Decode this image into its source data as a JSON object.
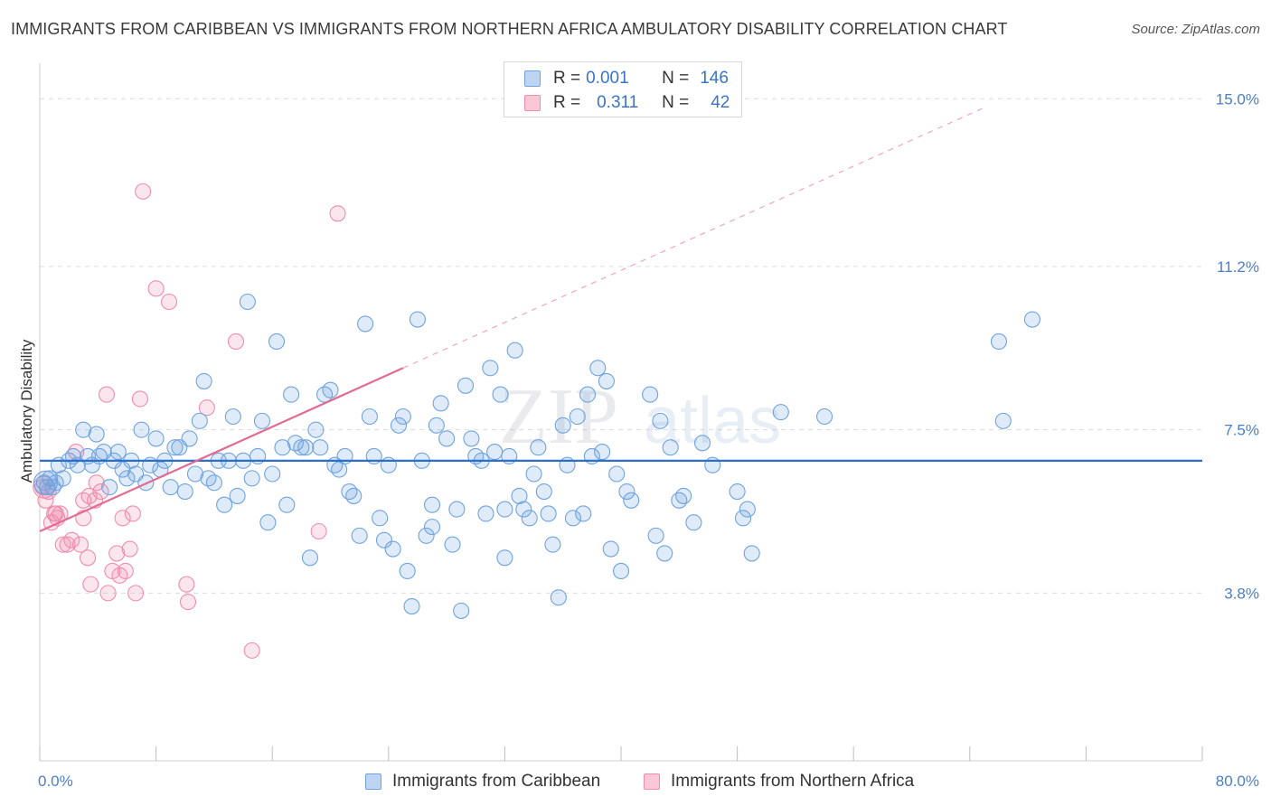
{
  "header": {
    "title": "IMMIGRANTS FROM CARIBBEAN VS IMMIGRANTS FROM NORTHERN AFRICA AMBULATORY DISABILITY CORRELATION CHART",
    "source": "Source: ZipAtlas.com"
  },
  "legend": {
    "rows": [
      {
        "r_label": "R =",
        "r_value": "0.001",
        "n_label": "N =",
        "n_value": "146"
      },
      {
        "r_label": "R =",
        "r_value": "0.311",
        "n_label": "N =",
        "n_value": "42"
      }
    ]
  },
  "watermark": {
    "part1": "ZIP",
    "part2": "atlas"
  },
  "chart_data": {
    "type": "scatter",
    "title": "IMMIGRANTS FROM CARIBBEAN VS IMMIGRANTS FROM NORTHERN AFRICA AMBULATORY DISABILITY CORRELATION CHART",
    "xlabel": "",
    "ylabel": "Ambulatory Disability",
    "xlim": [
      0,
      80
    ],
    "ylim": [
      0,
      15.6
    ],
    "x_tick_labels": [
      "0.0%",
      "80.0%"
    ],
    "y_ticks": [
      3.8,
      7.5,
      11.2,
      15.0
    ],
    "y_tick_labels": [
      "3.8%",
      "7.5%",
      "11.2%",
      "15.0%"
    ],
    "grid": true,
    "legend_position": "top-center",
    "colors": {
      "caribbean": "#6fa3e0",
      "northern_africa": "#f08cad",
      "caribbean_line": "#2a6fc9",
      "northern_africa_line": "#e26a93"
    },
    "series": [
      {
        "name": "Immigrants from Caribbean",
        "r": 0.001,
        "n": 146,
        "trend": {
          "x": [
            0,
            80
          ],
          "y": [
            6.8,
            6.8
          ]
        },
        "points": [
          [
            0.3,
            6.3
          ],
          [
            0.5,
            6.2
          ],
          [
            0.7,
            6.4
          ],
          [
            0.9,
            6.2
          ],
          [
            1.1,
            6.3
          ],
          [
            1.3,
            6.7
          ],
          [
            1.6,
            6.4
          ],
          [
            2.0,
            6.8
          ],
          [
            2.3,
            6.9
          ],
          [
            2.6,
            6.7
          ],
          [
            3.0,
            7.5
          ],
          [
            3.3,
            6.9
          ],
          [
            3.6,
            6.7
          ],
          [
            3.9,
            7.4
          ],
          [
            4.1,
            6.9
          ],
          [
            4.4,
            7.0
          ],
          [
            4.8,
            6.2
          ],
          [
            5.1,
            6.8
          ],
          [
            5.4,
            7.0
          ],
          [
            5.7,
            6.6
          ],
          [
            6.0,
            6.4
          ],
          [
            6.3,
            6.8
          ],
          [
            6.6,
            6.5
          ],
          [
            7.0,
            7.5
          ],
          [
            7.3,
            6.3
          ],
          [
            7.6,
            6.7
          ],
          [
            8.0,
            7.3
          ],
          [
            8.3,
            6.6
          ],
          [
            8.6,
            6.8
          ],
          [
            9.0,
            6.2
          ],
          [
            9.3,
            7.1
          ],
          [
            9.6,
            7.1
          ],
          [
            10.0,
            6.1
          ],
          [
            10.3,
            7.3
          ],
          [
            10.7,
            6.5
          ],
          [
            11.0,
            7.7
          ],
          [
            11.3,
            8.6
          ],
          [
            11.6,
            6.4
          ],
          [
            12.0,
            6.3
          ],
          [
            12.3,
            6.8
          ],
          [
            12.7,
            5.8
          ],
          [
            13.0,
            6.8
          ],
          [
            13.3,
            7.8
          ],
          [
            13.6,
            6.0
          ],
          [
            14.0,
            6.8
          ],
          [
            14.3,
            10.4
          ],
          [
            14.6,
            6.4
          ],
          [
            15.0,
            6.9
          ],
          [
            15.3,
            7.7
          ],
          [
            15.7,
            5.4
          ],
          [
            16.0,
            6.5
          ],
          [
            16.3,
            9.5
          ],
          [
            16.7,
            7.1
          ],
          [
            17.0,
            5.8
          ],
          [
            17.3,
            8.3
          ],
          [
            17.6,
            7.2
          ],
          [
            18.0,
            7.1
          ],
          [
            18.3,
            7.1
          ],
          [
            18.6,
            4.6
          ],
          [
            19.0,
            7.5
          ],
          [
            19.3,
            7.1
          ],
          [
            19.6,
            8.3
          ],
          [
            20.0,
            8.4
          ],
          [
            20.3,
            6.7
          ],
          [
            20.6,
            6.6
          ],
          [
            21.0,
            6.9
          ],
          [
            21.3,
            6.1
          ],
          [
            21.6,
            6.0
          ],
          [
            22.0,
            5.1
          ],
          [
            22.4,
            9.9
          ],
          [
            22.7,
            7.8
          ],
          [
            23.0,
            6.9
          ],
          [
            23.4,
            5.5
          ],
          [
            23.7,
            5.0
          ],
          [
            24.0,
            6.7
          ],
          [
            24.3,
            4.8
          ],
          [
            24.7,
            7.6
          ],
          [
            25.0,
            7.8
          ],
          [
            25.3,
            4.3
          ],
          [
            25.6,
            3.5
          ],
          [
            26.0,
            10.0
          ],
          [
            26.3,
            6.8
          ],
          [
            26.6,
            5.1
          ],
          [
            27.0,
            5.8
          ],
          [
            27.3,
            7.6
          ],
          [
            27.6,
            8.1
          ],
          [
            28.0,
            7.3
          ],
          [
            28.4,
            4.9
          ],
          [
            28.7,
            5.7
          ],
          [
            29.0,
            3.4
          ],
          [
            29.3,
            8.5
          ],
          [
            29.7,
            7.3
          ],
          [
            30.0,
            6.9
          ],
          [
            30.4,
            6.8
          ],
          [
            30.7,
            5.6
          ],
          [
            31.0,
            8.9
          ],
          [
            31.3,
            7.0
          ],
          [
            31.7,
            8.3
          ],
          [
            32.0,
            4.6
          ],
          [
            32.3,
            6.9
          ],
          [
            32.7,
            9.3
          ],
          [
            33.0,
            6.0
          ],
          [
            33.3,
            5.7
          ],
          [
            33.7,
            5.5
          ],
          [
            34.0,
            6.5
          ],
          [
            34.3,
            7.1
          ],
          [
            34.7,
            6.1
          ],
          [
            35.0,
            5.6
          ],
          [
            35.3,
            4.9
          ],
          [
            35.7,
            3.7
          ],
          [
            36.0,
            7.6
          ],
          [
            36.3,
            6.7
          ],
          [
            36.7,
            5.5
          ],
          [
            37.0,
            7.8
          ],
          [
            37.4,
            5.6
          ],
          [
            37.7,
            8.3
          ],
          [
            38.0,
            6.9
          ],
          [
            38.4,
            8.9
          ],
          [
            38.7,
            7.0
          ],
          [
            39.0,
            8.6
          ],
          [
            39.3,
            4.8
          ],
          [
            39.7,
            6.5
          ],
          [
            40.0,
            4.3
          ],
          [
            40.4,
            6.1
          ],
          [
            40.7,
            5.9
          ],
          [
            42.0,
            8.3
          ],
          [
            42.4,
            5.1
          ],
          [
            42.7,
            7.7
          ],
          [
            43.0,
            4.7
          ],
          [
            43.4,
            7.1
          ],
          [
            44.0,
            5.9
          ],
          [
            44.3,
            6.0
          ],
          [
            45.0,
            5.4
          ],
          [
            45.6,
            7.2
          ],
          [
            46.3,
            6.7
          ],
          [
            48.0,
            6.1
          ],
          [
            48.4,
            5.5
          ],
          [
            48.7,
            5.7
          ],
          [
            49.0,
            4.7
          ],
          [
            51.0,
            7.9
          ],
          [
            54.0,
            7.8
          ],
          [
            66.0,
            9.5
          ],
          [
            66.3,
            7.7
          ],
          [
            68.3,
            10.0
          ],
          [
            32.0,
            5.7
          ],
          [
            27.0,
            5.3
          ]
        ]
      },
      {
        "name": "Immigrants from Northern Africa",
        "r": 0.311,
        "n": 42,
        "trend": {
          "x": [
            0,
            25
          ],
          "y": [
            5.2,
            8.9
          ]
        },
        "trend_extended": {
          "x": [
            25,
            65
          ],
          "y": [
            8.9,
            14.8
          ]
        },
        "points": [
          [
            0.2,
            6.2
          ],
          [
            0.4,
            5.9
          ],
          [
            0.6,
            6.1
          ],
          [
            0.8,
            5.4
          ],
          [
            1.0,
            5.6
          ],
          [
            1.2,
            5.5
          ],
          [
            1.4,
            5.6
          ],
          [
            1.6,
            4.9
          ],
          [
            1.9,
            4.9
          ],
          [
            2.2,
            5.0
          ],
          [
            2.5,
            7.0
          ],
          [
            2.8,
            4.9
          ],
          [
            3.0,
            5.9
          ],
          [
            3.3,
            4.6
          ],
          [
            3.4,
            6.0
          ],
          [
            3.5,
            4.0
          ],
          [
            3.8,
            5.9
          ],
          [
            3.9,
            6.3
          ],
          [
            4.2,
            6.1
          ],
          [
            4.6,
            8.3
          ],
          [
            4.7,
            3.8
          ],
          [
            5.0,
            4.3
          ],
          [
            5.3,
            4.7
          ],
          [
            5.5,
            4.2
          ],
          [
            5.7,
            5.5
          ],
          [
            5.9,
            4.3
          ],
          [
            6.2,
            4.8
          ],
          [
            6.4,
            5.6
          ],
          [
            6.6,
            3.8
          ],
          [
            6.9,
            8.2
          ],
          [
            7.1,
            12.9
          ],
          [
            8.0,
            10.7
          ],
          [
            8.9,
            10.4
          ],
          [
            10.1,
            4.0
          ],
          [
            10.2,
            3.6
          ],
          [
            11.5,
            8.0
          ],
          [
            13.5,
            9.5
          ],
          [
            14.6,
            2.5
          ],
          [
            19.2,
            5.2
          ],
          [
            20.5,
            12.4
          ],
          [
            3.0,
            5.5
          ],
          [
            1.1,
            5.6
          ]
        ]
      }
    ]
  },
  "bottom_legend": {
    "items": [
      {
        "label": "Immigrants from Caribbean"
      },
      {
        "label": "Immigrants from Northern Africa"
      }
    ]
  }
}
